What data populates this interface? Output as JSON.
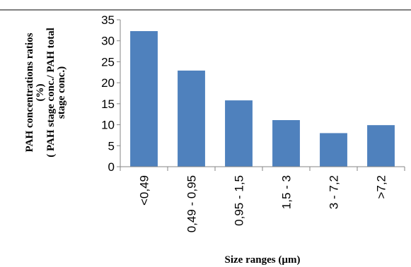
{
  "chart_data": {
    "type": "bar",
    "categories": [
      "<0,49",
      "0,49 - 0,95",
      "0,95 - 1,5",
      "1,5 - 3",
      "3 - 7,2",
      ">7,2"
    ],
    "values": [
      32.3,
      22.9,
      15.8,
      11.1,
      8.0,
      9.9
    ],
    "ylim": [
      0,
      35
    ],
    "yticks": [
      0,
      5,
      10,
      15,
      20,
      25,
      30,
      35
    ],
    "xlabel": "Size ranges (µm)",
    "ylabel_lines": [
      "PAH concentrations ratios",
      "(%)",
      "( PAH stage conc./ PAH total",
      "stage conc.)"
    ],
    "grid": false,
    "legend": "none",
    "colors": {
      "bar": "#4F81BD",
      "axis": "#868686",
      "border": "#000000"
    }
  }
}
